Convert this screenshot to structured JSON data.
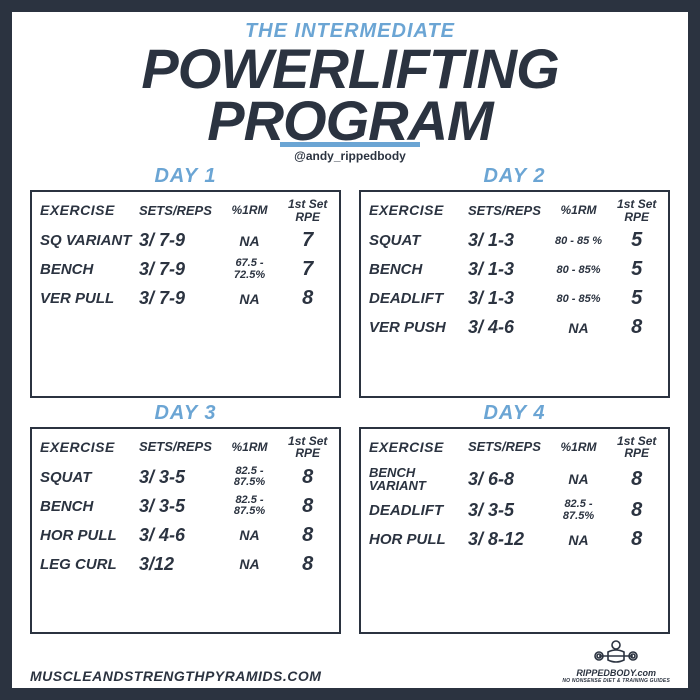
{
  "colors": {
    "accent": "#6ba5d4",
    "dark": "#2b3340",
    "bg": "#ffffff"
  },
  "header": {
    "subtitle": "THE INTERMEDIATE",
    "title_line1": "POWERLIFTING",
    "title_line2": "PROGRAM",
    "handle": "@andy_rippedbody"
  },
  "columns": {
    "exercise": "EXERCISE",
    "sets": "SETS/REPS",
    "rm": "%1RM",
    "rpe_l1": "1st Set",
    "rpe_l2": "RPE"
  },
  "days": {
    "day1": {
      "title": "DAY 1",
      "rows": [
        {
          "ex": "SQ VARIANT",
          "sets": "3/ 7-9",
          "rm": "NA",
          "rpe": "7"
        },
        {
          "ex": "BENCH",
          "sets": "3/ 7-9",
          "rm": "67.5 -\n72.5%",
          "rpe": "7"
        },
        {
          "ex": "VER PULL",
          "sets": "3/ 7-9",
          "rm": "NA",
          "rpe": "8"
        }
      ]
    },
    "day2": {
      "title": "DAY 2",
      "rows": [
        {
          "ex": "SQUAT",
          "sets": "3/ 1-3",
          "rm": "80 - 85 %",
          "rpe": "5"
        },
        {
          "ex": "BENCH",
          "sets": "3/ 1-3",
          "rm": "80 - 85%",
          "rpe": "5"
        },
        {
          "ex": "DEADLIFT",
          "sets": "3/ 1-3",
          "rm": "80 - 85%",
          "rpe": "5"
        },
        {
          "ex": "VER PUSH",
          "sets": "3/ 4-6",
          "rm": "NA",
          "rpe": "8"
        }
      ]
    },
    "day3": {
      "title": "DAY 3",
      "rows": [
        {
          "ex": "SQUAT",
          "sets": "3/ 3-5",
          "rm": "82.5 -\n87.5%",
          "rpe": "8"
        },
        {
          "ex": "BENCH",
          "sets": "3/ 3-5",
          "rm": "82.5 -\n87.5%",
          "rpe": "8"
        },
        {
          "ex": "HOR PULL",
          "sets": "3/ 4-6",
          "rm": "NA",
          "rpe": "8"
        },
        {
          "ex": "LEG CURL",
          "sets": "3/12",
          "rm": "NA",
          "rpe": "8"
        }
      ]
    },
    "day4": {
      "title": "DAY 4",
      "rows": [
        {
          "ex": "BENCH\nVARIANT",
          "sets": "3/ 6-8",
          "rm": "NA",
          "rpe": "8"
        },
        {
          "ex": "DEADLIFT",
          "sets": "3/ 3-5",
          "rm": "82.5 -\n87.5%",
          "rpe": "8"
        },
        {
          "ex": "HOR PULL",
          "sets": "3/ 8-12",
          "rm": "NA",
          "rpe": "8"
        }
      ]
    }
  },
  "footer": {
    "left": "MUSCLEANDSTRENGTHPYRAMIDS.COM",
    "right_brand": "RIPPEDBODY.com",
    "right_tag": "NO NONSENSE DIET & TRAINING GUIDES"
  }
}
